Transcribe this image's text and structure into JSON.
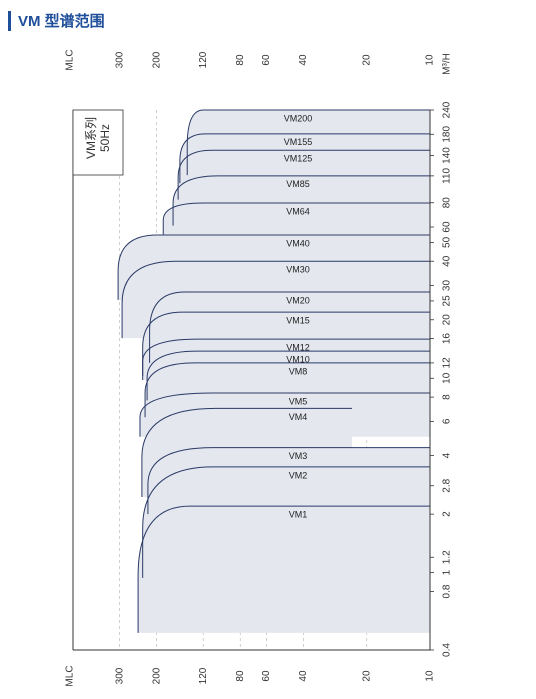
{
  "header": {
    "title": "VM 型谱范围"
  },
  "chart_data": {
    "type": "range",
    "x_label": "MLC",
    "y_label": "M³/H",
    "series_label": "VM系列",
    "frequency": "50Hz",
    "xscale": "log",
    "yscale": "log",
    "grid": true,
    "xlim": [
      500,
      10
    ],
    "ylim": [
      0.4,
      240
    ],
    "xticks": [
      300,
      200,
      120,
      80,
      60,
      40,
      20,
      10
    ],
    "yticks": [
      0.4,
      0.8,
      1,
      1.2,
      2,
      2.8,
      4,
      6,
      8,
      10,
      12,
      16,
      20,
      25,
      30,
      40,
      50,
      60,
      80,
      110,
      140,
      180,
      240
    ],
    "fill_color": "#e4e7ee",
    "line_color": "#2b3a67",
    "series": [
      {
        "name": "VM1",
        "q": [
          0.49,
          2.2
        ],
        "h": [
          245,
          139,
          10
        ]
      },
      {
        "name": "VM2",
        "q": [
          0.94,
          3.5
        ],
        "h": [
          233,
          108,
          10
        ]
      },
      {
        "name": "VM3",
        "q": [
          2.0,
          4.4
        ],
        "h": [
          220,
          108,
          10
        ]
      },
      {
        "name": "VM4",
        "q": [
          2.45,
          7.0
        ],
        "h": [
          235,
          105,
          23.5
        ]
      },
      {
        "name": "VM5",
        "q": [
          5.0,
          8.4
        ],
        "h": [
          240,
          108,
          10
        ]
      },
      {
        "name": "VM8",
        "q": [
          6.3,
          12
        ],
        "h": [
          227,
          131,
          10
        ]
      },
      {
        "name": "VM10",
        "q": [
          7.7,
          13.8
        ],
        "h": [
          222,
          128,
          10
        ]
      },
      {
        "name": "VM12",
        "q": [
          9.8,
          15.9
        ],
        "h": [
          233,
          128,
          10
        ]
      },
      {
        "name": "VM15",
        "q": [
          10.3,
          21.9
        ],
        "h": [
          233,
          150,
          10
        ]
      },
      {
        "name": "VM20",
        "q": [
          12,
          27.8
        ],
        "h": [
          216,
          147,
          10
        ]
      },
      {
        "name": "VM30",
        "q": [
          16.1,
          40
        ],
        "h": [
          292,
          162,
          10
        ]
      },
      {
        "name": "VM40",
        "q": [
          25.3,
          54.6
        ],
        "h": [
          305,
          199,
          10
        ]
      },
      {
        "name": "VM64",
        "q": [
          55,
          79.8
        ],
        "h": [
          186,
          120,
          10
        ]
      },
      {
        "name": "VM85",
        "q": [
          61,
          110
        ],
        "h": [
          167,
          102,
          10
        ]
      },
      {
        "name": "VM125",
        "q": [
          83,
          149
        ],
        "h": [
          158,
          109,
          10
        ]
      },
      {
        "name": "VM155",
        "q": [
          101,
          181
        ],
        "h": [
          155,
          117,
          10
        ]
      },
      {
        "name": "VM200",
        "q": [
          111,
          240
        ],
        "h": [
          143,
          120,
          10
        ]
      }
    ]
  }
}
